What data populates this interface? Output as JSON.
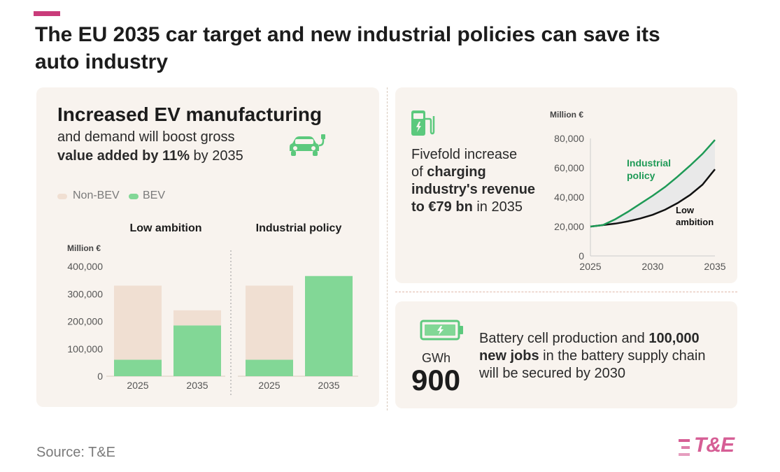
{
  "title": "The EU 2035 car target and new industrial policies can save its auto industry",
  "left_panel": {
    "heading": "Increased EV manufacturing",
    "line1": "and demand will boost gross",
    "line2_bold": "value added by 11%",
    "line2_rest": " by 2035",
    "icon": "electric-car-icon"
  },
  "right_top": {
    "icon": "charging-station-icon",
    "text_line1": "Fivefold increase",
    "text_line2_pre": "of ",
    "text_line2_bold": "charging",
    "text_line3_bold": "industry's revenue",
    "text_line4_bold": "to €79 bn",
    "text_line4_rest": " in 2035"
  },
  "right_bottom": {
    "icon": "battery-icon",
    "unit": "GWh",
    "value": "900",
    "line1_pre": "Battery cell production and ",
    "line1_bold": "100,000",
    "line2_bold": "new jobs",
    "line2_rest": " in the battery supply chain",
    "line3": "will be secured by 2030"
  },
  "colors": {
    "accent": "#c93b7a",
    "panel_bg": "#f8f3ee",
    "non_bev": "#f0dfd2",
    "bev": "#82d796",
    "industrial_line": "#1e9a56",
    "low_line": "#111111",
    "band": "#e9e9e9",
    "logo": "#d65e95"
  },
  "chart_data": [
    {
      "type": "bar",
      "stacked": true,
      "unit_label": "Million €",
      "legend": [
        "Non-BEV",
        "BEV"
      ],
      "groups": [
        "Low ambition",
        "Industrial policy"
      ],
      "categories": [
        "2025",
        "2035"
      ],
      "yticks": [
        "400,000",
        "300,000",
        "200,000",
        "100,000",
        "0"
      ],
      "ylim": [
        0,
        400000
      ],
      "series": [
        {
          "name": "BEV",
          "group": "Low ambition",
          "values": [
            60000,
            185000
          ]
        },
        {
          "name": "Non-BEV",
          "group": "Low ambition",
          "values": [
            270000,
            55000
          ]
        },
        {
          "name": "BEV",
          "group": "Industrial policy",
          "values": [
            60000,
            365000
          ]
        },
        {
          "name": "Non-BEV",
          "group": "Industrial policy",
          "values": [
            270000,
            0
          ]
        }
      ]
    },
    {
      "type": "line",
      "unit_label": "Million €",
      "x": [
        2025,
        2026,
        2027,
        2028,
        2029,
        2030,
        2031,
        2032,
        2033,
        2034,
        2035
      ],
      "xticks": [
        "2025",
        "2030",
        "2035"
      ],
      "yticks": [
        "80,000",
        "60,000",
        "40,000",
        "20,000",
        "0"
      ],
      "ylim": [
        0,
        80000
      ],
      "series": [
        {
          "name": "Industrial policy",
          "label_line1": "Industrial",
          "label_line2": "policy",
          "values": [
            20000,
            21000,
            25000,
            30000,
            35500,
            41000,
            47000,
            54000,
            61500,
            69500,
            79000
          ]
        },
        {
          "name": "Low ambition",
          "label_line1": "Low",
          "label_line2": "ambition",
          "values": [
            20000,
            21000,
            22000,
            23500,
            25500,
            28000,
            31500,
            36000,
            41500,
            48500,
            59000
          ]
        }
      ]
    }
  ],
  "source": "Source: T&E",
  "logo": {
    "text": "T&E"
  }
}
